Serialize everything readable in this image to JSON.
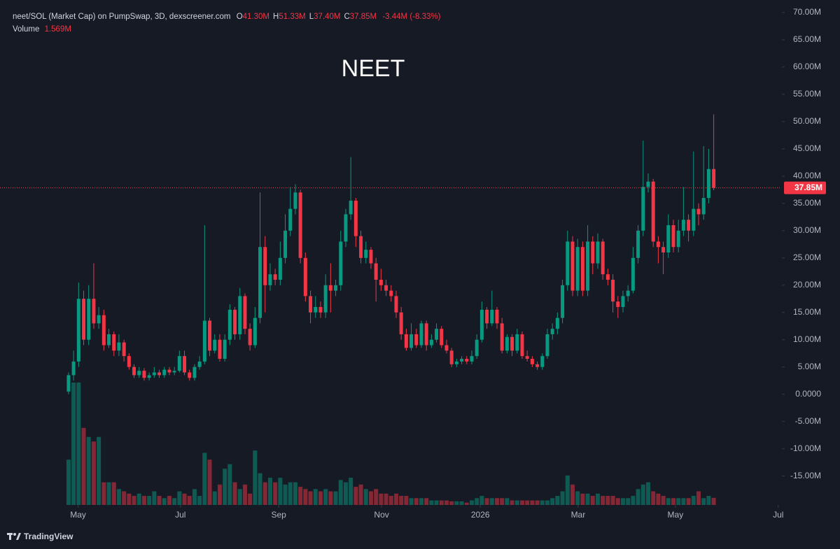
{
  "chart_data": {
    "type": "candlestick",
    "title": "NEET",
    "legend_title": "neet/SOL (Market Cap) on PumpSwap, 3D, dexscreener.com",
    "ohlc": [
      {
        "key": "O",
        "value": 41.3,
        "label": "41.30M"
      },
      {
        "key": "H",
        "value": 51.33,
        "label": "51.33M"
      },
      {
        "key": "L",
        "value": 37.4,
        "label": "37.40M"
      },
      {
        "key": "C",
        "value": 37.85,
        "label": "37.85M"
      }
    ],
    "change": {
      "value": -3.44,
      "label": "-3.44M"
    },
    "change_pct": {
      "value": -8.33,
      "label": "(-8.33%)"
    },
    "volume_legend": {
      "name": "Volume",
      "value": 1.569,
      "label": "1.569M"
    },
    "last_price": {
      "value": 37.85,
      "label": "37.85M"
    },
    "brand": "TradingView",
    "colors": {
      "up": "#089981",
      "down": "#f23645"
    },
    "open": [
      0.5,
      3.5,
      6,
      17.5,
      10,
      17.5,
      13,
      14.5,
      9,
      11,
      8,
      9.5,
      7,
      5,
      3.5,
      4.3,
      3,
      3.5,
      4,
      3.5,
      4.5,
      4,
      4.3,
      7,
      4,
      3,
      5,
      6,
      13.5,
      8,
      10,
      6.5,
      10,
      15.5,
      11,
      18,
      12,
      9,
      14,
      27,
      20,
      22,
      21,
      25,
      30,
      34,
      37,
      25,
      18,
      15,
      16,
      15,
      20,
      19,
      20,
      28,
      33,
      35.5,
      29,
      25,
      26.5,
      24,
      21,
      20,
      19,
      18,
      15,
      11,
      8.5,
      11,
      9,
      13,
      9,
      10,
      12,
      9,
      8,
      5.5,
      6,
      6.5,
      6,
      7,
      10,
      15.5,
      13,
      15.5,
      13,
      8,
      10.5,
      8,
      11,
      7,
      6.5,
      5.5,
      5,
      7,
      11,
      12,
      14,
      20,
      28,
      19,
      27,
      19,
      28,
      24,
      28,
      22,
      21,
      17,
      16,
      18,
      19,
      25,
      30,
      38,
      39,
      28,
      27,
      26,
      31,
      27,
      30,
      32,
      30,
      34,
      33,
      36,
      41.3
    ],
    "high": [
      4,
      8,
      20.5,
      19,
      20,
      24,
      16,
      15.5,
      12,
      11.5,
      11,
      10,
      7.5,
      5.5,
      5,
      4.8,
      4,
      5,
      4.5,
      5,
      5,
      5,
      8,
      8,
      4.5,
      5.5,
      7,
      31,
      14,
      11,
      11,
      11,
      16.5,
      16,
      19.5,
      18.5,
      13,
      16,
      37,
      29,
      24,
      23,
      28,
      33,
      38,
      38.5,
      37.5,
      26,
      19,
      18,
      17,
      22,
      24,
      21,
      30,
      34,
      43.5,
      36,
      30,
      28,
      27,
      25,
      23,
      21,
      20,
      19,
      16,
      12,
      13,
      12,
      13.5,
      13.5,
      11,
      13,
      12.5,
      10,
      8.5,
      6.5,
      7,
      7,
      8,
      11,
      17,
      16,
      19,
      16,
      14,
      11,
      11,
      12,
      11.5,
      8,
      7,
      6,
      7.5,
      12,
      13,
      15,
      21,
      30,
      29,
      28.5,
      28,
      31,
      29,
      29.5,
      28.5,
      23,
      22,
      18,
      19,
      20,
      27,
      31,
      46.5,
      40.5,
      39.5,
      29,
      28,
      33,
      32,
      32,
      38,
      33,
      44.5,
      35,
      45.5,
      45,
      51.33
    ],
    "low": [
      0,
      2.5,
      5,
      9,
      9,
      12,
      12,
      8,
      8.5,
      7,
      7,
      6,
      4.5,
      3,
      3,
      2.5,
      2.5,
      3,
      3,
      3,
      3.5,
      3.5,
      4,
      3.5,
      2.5,
      2.5,
      4.5,
      5.5,
      7,
      7.5,
      6,
      6,
      9,
      10,
      10,
      11,
      8,
      8.5,
      13,
      15,
      19,
      20,
      20,
      24,
      29,
      33,
      24,
      17,
      13,
      14,
      14,
      14,
      15,
      18,
      19,
      27,
      32,
      27,
      24,
      24,
      23,
      17,
      19,
      18,
      17,
      14,
      10,
      8,
      8,
      8.5,
      8.5,
      8,
      8.5,
      9.5,
      8.5,
      7.5,
      5,
      5,
      5.5,
      5.5,
      5.5,
      6.5,
      9.5,
      12,
      12.5,
      12,
      7.5,
      7.5,
      7,
      7.5,
      6.5,
      6,
      5,
      4.5,
      4.5,
      6.5,
      10,
      11,
      13,
      19,
      18,
      18,
      18,
      18,
      22,
      23,
      21,
      20,
      15,
      14,
      15,
      17,
      18.5,
      24,
      29,
      37,
      27,
      24,
      22,
      25,
      26,
      26,
      29,
      28,
      29,
      31,
      32,
      35,
      37.4
    ],
    "close": [
      3.5,
      6,
      17.5,
      10,
      17.5,
      13,
      14.5,
      9,
      11,
      8,
      9.5,
      7,
      5,
      3.5,
      4.3,
      3,
      3.5,
      4,
      3.5,
      4.5,
      4,
      4.3,
      7,
      4,
      3,
      5,
      6,
      13.5,
      8,
      10,
      6.5,
      10,
      15.5,
      11,
      18,
      12,
      9,
      14,
      27,
      20,
      22,
      21,
      25,
      30,
      34,
      37,
      25,
      18,
      15,
      16,
      15,
      20,
      19,
      20,
      28,
      33,
      35.5,
      29,
      25,
      26.5,
      24,
      21,
      20,
      19,
      18,
      15,
      11,
      8.5,
      11,
      9,
      13,
      9,
      10,
      12,
      9,
      8,
      5.5,
      6,
      6.5,
      6,
      7,
      10,
      15.5,
      13,
      15.5,
      13,
      8,
      10.5,
      8,
      11,
      7,
      6.5,
      5.5,
      5,
      7,
      11,
      12,
      14,
      20,
      28,
      19,
      27,
      19,
      28,
      24,
      28,
      22,
      21,
      17,
      16,
      18,
      19,
      25,
      30,
      38,
      39,
      28,
      27,
      26,
      31,
      27,
      30,
      32,
      30,
      34,
      33,
      36,
      41.3,
      37.85
    ],
    "volume": [
      10,
      27,
      27,
      17,
      15,
      14,
      15,
      5,
      5,
      5,
      3.5,
      3,
      2.5,
      2,
      2.5,
      2,
      2,
      3,
      2,
      1.5,
      2,
      1.5,
      3,
      2.5,
      2,
      3.5,
      2,
      11.5,
      10,
      3,
      4.5,
      8,
      9,
      5,
      3.5,
      4.5,
      2.5,
      12,
      7,
      5,
      6,
      5,
      6,
      4.5,
      5,
      5,
      4,
      3.5,
      3,
      3.5,
      3,
      3.5,
      3,
      3,
      5.5,
      5,
      6,
      4,
      4.5,
      3.5,
      3,
      3.5,
      2.5,
      2.5,
      2,
      2.5,
      2,
      2,
      1.5,
      1.5,
      1.5,
      1.5,
      1,
      1,
      1,
      1,
      0.8,
      0.8,
      0.8,
      0.5,
      1,
      1.5,
      2,
      1.5,
      1.5,
      1.5,
      1.5,
      1.5,
      1,
      1,
      1,
      1,
      1,
      1,
      1,
      1,
      1.5,
      2,
      3,
      6.5,
      4.5,
      3,
      2.5,
      2.5,
      2,
      2.5,
      2,
      2,
      2,
      1.5,
      1.5,
      1.5,
      2,
      3.5,
      4.5,
      5,
      3,
      2.5,
      2,
      1.5,
      1.5,
      1.5,
      1.5,
      1.5,
      2,
      3,
      1.5,
      2,
      1.569
    ],
    "xlim": [
      -13.6,
      141.25
    ],
    "xticks": [
      {
        "value": 1.9,
        "label": "May"
      },
      {
        "value": 22.2,
        "label": "Jul"
      },
      {
        "value": 41.7,
        "label": "Sep"
      },
      {
        "value": 62.1,
        "label": "Nov"
      },
      {
        "value": 81.7,
        "label": "2026"
      },
      {
        "value": 101.1,
        "label": "Mar"
      },
      {
        "value": 120.4,
        "label": "May"
      },
      {
        "value": 140.8,
        "label": "Jul"
      }
    ],
    "ylim": [
      -20.3,
      72.3
    ],
    "yticks": [
      {
        "value": 70,
        "label": "70.00M"
      },
      {
        "value": 65,
        "label": "65.00M"
      },
      {
        "value": 60,
        "label": "60.00M"
      },
      {
        "value": 55,
        "label": "55.00M"
      },
      {
        "value": 50,
        "label": "50.00M"
      },
      {
        "value": 45,
        "label": "45.00M"
      },
      {
        "value": 40,
        "label": "40.00M"
      },
      {
        "value": 35,
        "label": "35.00M"
      },
      {
        "value": 30,
        "label": "30.00M"
      },
      {
        "value": 25,
        "label": "25.00M"
      },
      {
        "value": 20,
        "label": "20.00M"
      },
      {
        "value": 15,
        "label": "15.00M"
      },
      {
        "value": 10,
        "label": "10.00M"
      },
      {
        "value": 5,
        "label": "5.00M"
      },
      {
        "value": 0,
        "label": "0.0000"
      },
      {
        "value": -5,
        "label": "-5.00M"
      },
      {
        "value": -10,
        "label": "-10.00M"
      },
      {
        "value": -15,
        "label": "-15.00M"
      }
    ]
  }
}
